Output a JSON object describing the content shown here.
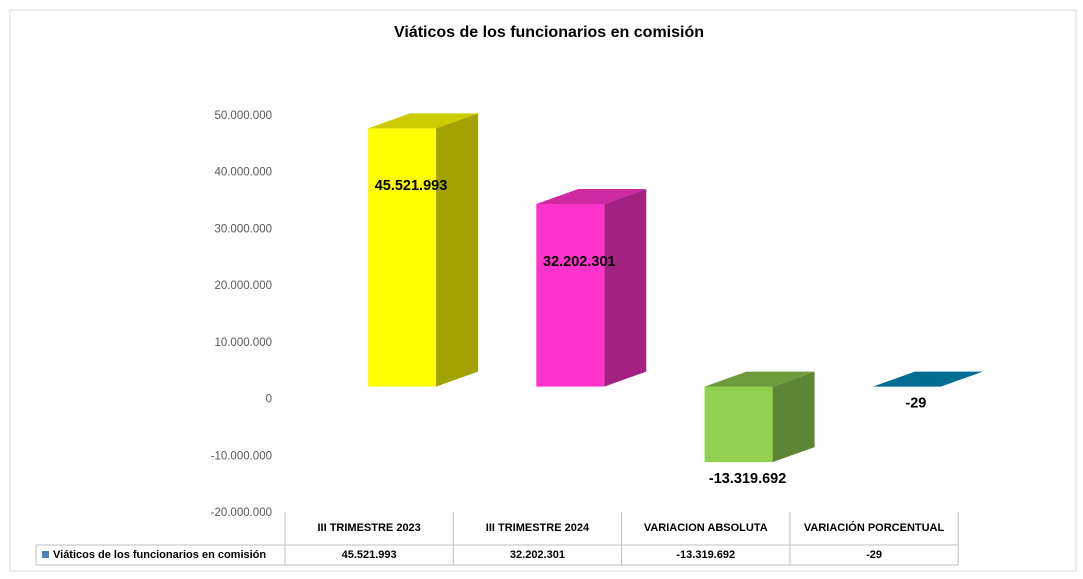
{
  "chart_data": {
    "type": "bar3d",
    "title": "Viáticos de los funcionarios en comisión",
    "categories": [
      "III TRIMESTRE 2023",
      "III TRIMESTRE 2024",
      "VARIACION ABSOLUTA",
      "VARIACIÓN PORCENTUAL"
    ],
    "series": [
      {
        "name": "Viáticos de los funcionarios en comisión",
        "color": "#4f81bd",
        "values": [
          45521993,
          32202301,
          -13319692,
          -29
        ],
        "value_labels": [
          "45.521.993",
          "32.202.301",
          "-13.319.692",
          "-29"
        ],
        "colors": [
          "#ffff00",
          "#ff33cc",
          "#92d050",
          "#0093c4"
        ]
      }
    ],
    "ylim": [
      -20000000,
      50000000
    ],
    "yticks": [
      {
        "value": -20000000,
        "label": "-20.000.000"
      },
      {
        "value": -10000000,
        "label": "-10.000.000"
      },
      0,
      {
        "value": 10000000,
        "label": "10.000.000"
      },
      {
        "value": 20000000,
        "label": "20.000.000"
      },
      {
        "value": 30000000,
        "label": "30.000.000"
      },
      {
        "value": 40000000,
        "label": "40.000.000"
      },
      {
        "value": 50000000,
        "label": "50.000.000"
      }
    ],
    "grid": false,
    "data_table": true
  }
}
